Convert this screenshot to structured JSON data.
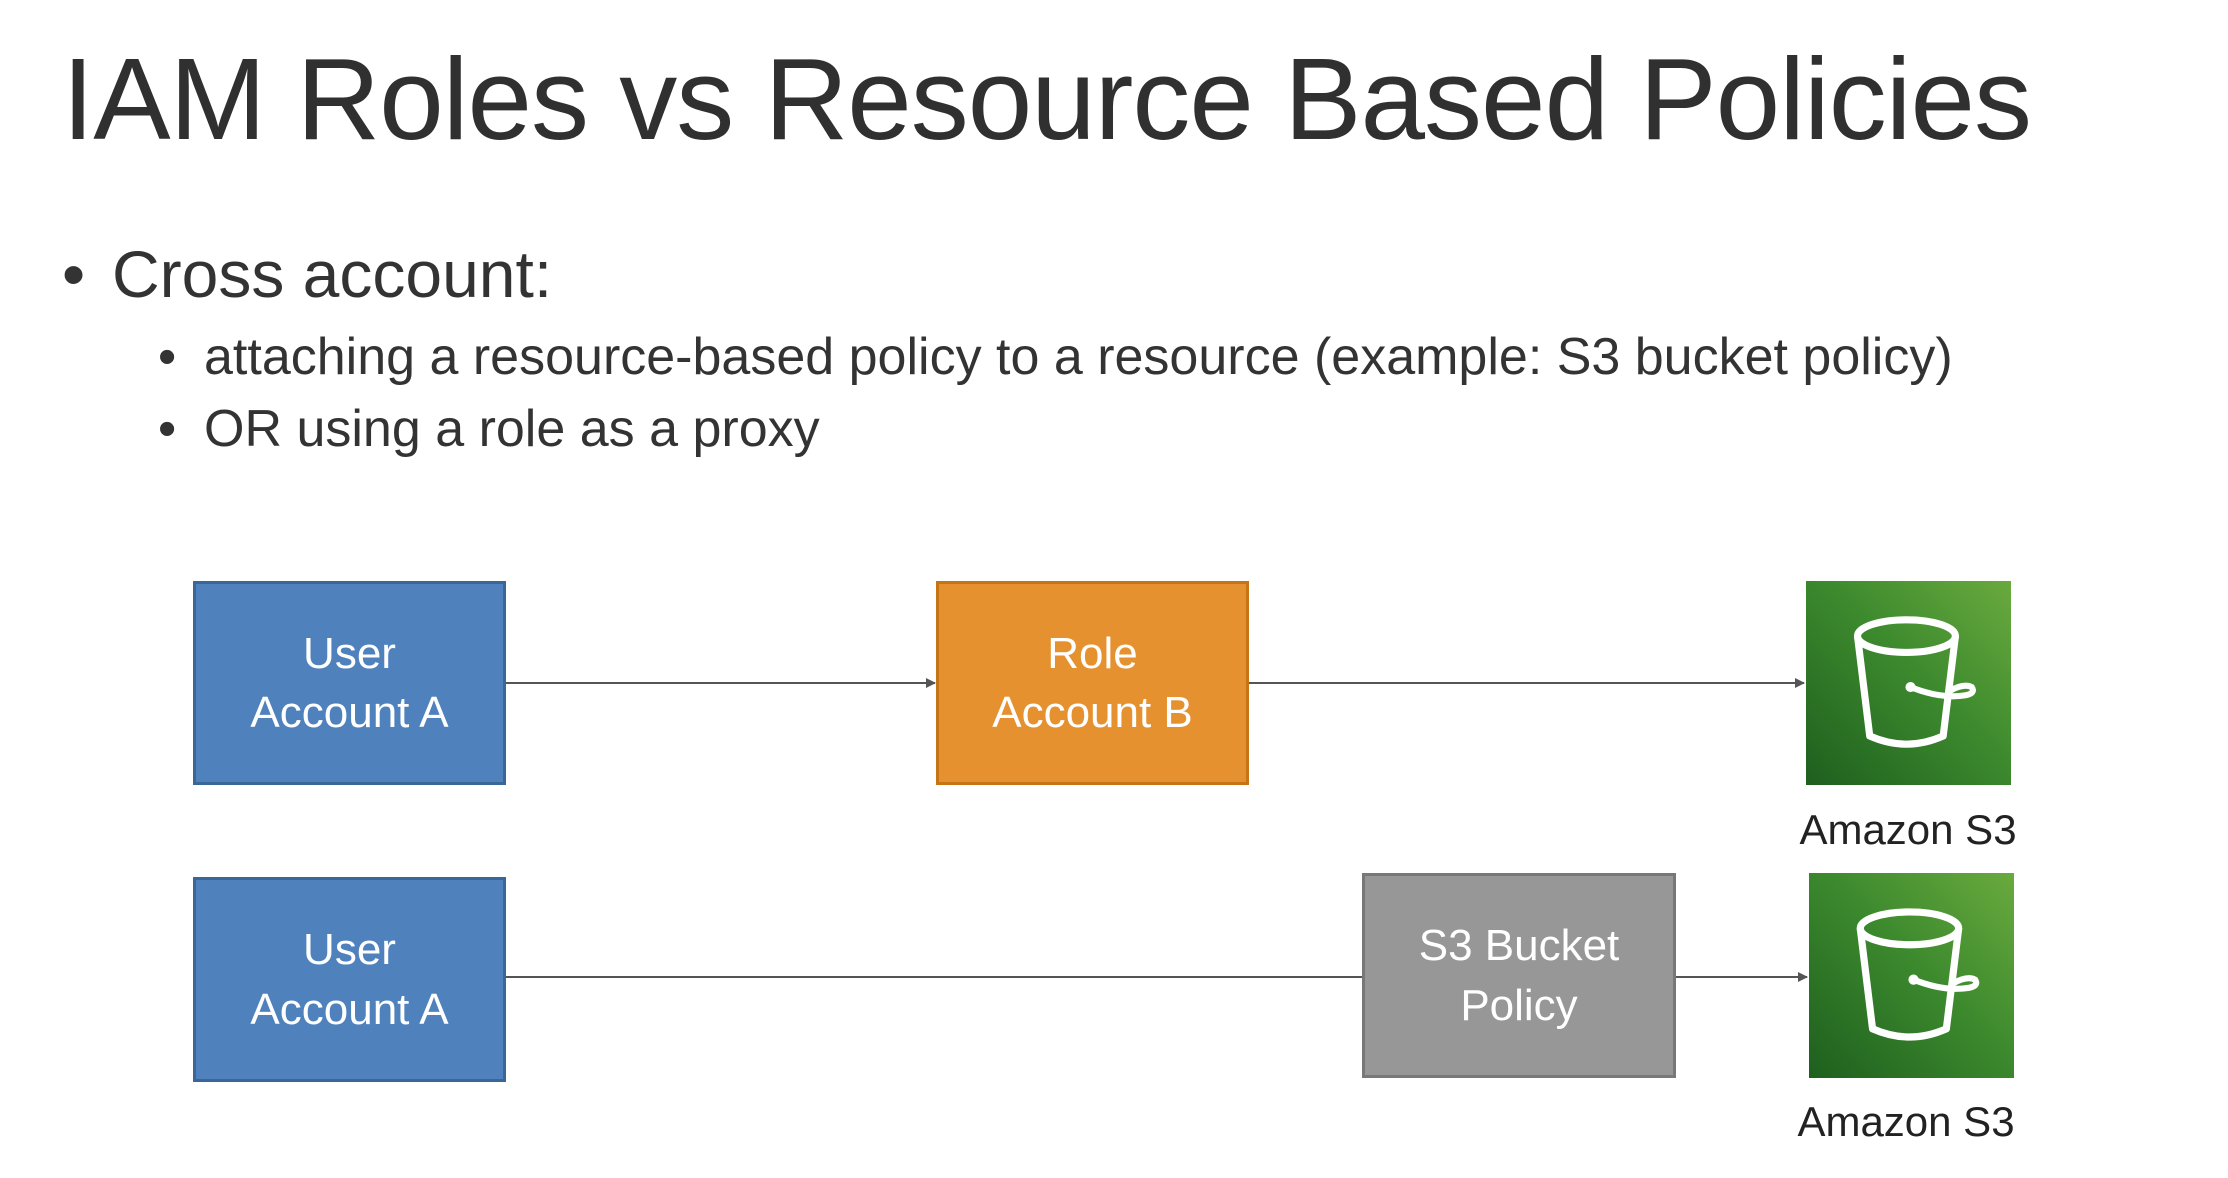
{
  "title": "IAM Roles vs Resource Based Policies",
  "bullets": {
    "main": "Cross account:",
    "sub": [
      "attaching a resource-based policy to a resource (example: S3 bucket policy)",
      "OR using a role as a proxy"
    ]
  },
  "diagram": {
    "row1": {
      "user_box": {
        "line1": "User",
        "line2": "Account A"
      },
      "role_box": {
        "line1": "Role",
        "line2": "Account B"
      },
      "target": {
        "label": "Amazon S3",
        "icon": "s3-bucket-icon"
      }
    },
    "row2": {
      "user_box": {
        "line1": "User",
        "line2": "Account A"
      },
      "policy_box": {
        "line1": "S3 Bucket",
        "line2": "Policy"
      },
      "target": {
        "label": "Amazon S3",
        "icon": "s3-bucket-icon"
      }
    }
  },
  "colors": {
    "user_box": "#4f81bd",
    "role_box": "#e6912f",
    "policy_box": "#979797",
    "s3_icon": "#3d8a2e",
    "connector": "#555555"
  }
}
